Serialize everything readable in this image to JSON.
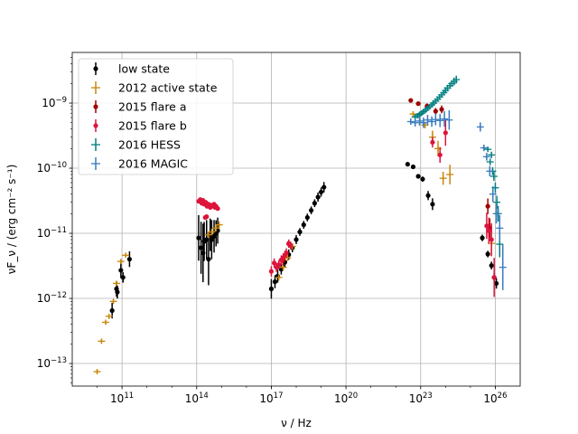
{
  "chart_data": {
    "type": "scatter",
    "xscale": "log",
    "yscale": "log",
    "xlabel": "ν / Hz",
    "ylabel": "νF_ν / (erg cm⁻² s⁻¹)",
    "xlim": [
      1000000000.0,
      1e+27
    ],
    "ylim": [
      4.5e-14,
      6e-09
    ],
    "grid": true,
    "legend_position": "top-left",
    "x_ticks": [
      {
        "value": 100000000000.0,
        "label": "10",
        "exp": "11"
      },
      {
        "value": 100000000000000.0,
        "label": "10",
        "exp": "14"
      },
      {
        "value": 1e+17,
        "label": "10",
        "exp": "17"
      },
      {
        "value": 1e+20,
        "label": "10",
        "exp": "20"
      },
      {
        "value": 1e+23,
        "label": "10",
        "exp": "23"
      },
      {
        "value": 1e+26,
        "label": "10",
        "exp": "26"
      }
    ],
    "y_ticks": [
      {
        "value": 1e-13,
        "label": "10",
        "exp": "−13"
      },
      {
        "value": 1e-12,
        "label": "10",
        "exp": "−12"
      },
      {
        "value": 1e-11,
        "label": "10",
        "exp": "−11"
      },
      {
        "value": 1e-10,
        "label": "10",
        "exp": "−10"
      },
      {
        "value": 1e-09,
        "label": "10",
        "exp": "−9"
      }
    ],
    "series": [
      {
        "name": "low state",
        "color": "#000000",
        "marker": "dot",
        "points": [
          [
            40000000000.0,
            6.5e-13,
            0.12
          ],
          [
            60000000000.0,
            1.4e-12,
            0.12
          ],
          [
            65000000000.0,
            1.25e-12,
            0.1
          ],
          [
            90000000000.0,
            2.7e-12,
            0.12
          ],
          [
            110000000000.0,
            2.1e-12,
            0.08
          ],
          [
            200000000000.0,
            4e-12,
            0.12
          ],
          [
            120000000000000.0,
            8.5e-12,
            0.35
          ],
          [
            150000000000000.0,
            6e-12,
            0.4
          ],
          [
            180000000000000.0,
            5e-12,
            0.45
          ],
          [
            200000000000000.0,
            7.5e-12,
            0.3
          ],
          [
            250000000000000.0,
            8e-12,
            0.3
          ],
          [
            300000000000000.0,
            4e-12,
            0.4
          ],
          [
            350000000000000.0,
            9.5e-12,
            0.25
          ],
          [
            400000000000000.0,
            8e-12,
            0.3
          ],
          [
            500000000000000.0,
            9e-12,
            0.25
          ],
          [
            600000000000000.0,
            1e-11,
            0.2
          ],
          [
            700000000000000.0,
            1.1e-11,
            0.2
          ],
          [
            1e+17,
            1.4e-12,
            0.15
          ],
          [
            1.4e+17,
            1.8e-12,
            0.1
          ],
          [
            1.8e+17,
            2.2e-12,
            0.1
          ],
          [
            2.5e+17,
            2.8e-12,
            0.08
          ],
          [
            3.5e+17,
            3.6e-12,
            0.08
          ],
          [
            5e+17,
            4.7e-12,
            0.08
          ],
          [
            7e+17,
            6e-12,
            0.07
          ],
          [
            1e+18,
            8e-12,
            0.07
          ],
          [
            1.4e+18,
            1.05e-11,
            0.06
          ],
          [
            2e+18,
            1.35e-11,
            0.06
          ],
          [
            2.8e+18,
            1.75e-11,
            0.06
          ],
          [
            4e+18,
            2.25e-11,
            0.06
          ],
          [
            5.5e+18,
            2.9e-11,
            0.06
          ],
          [
            7.5e+18,
            3.6e-11,
            0.07
          ],
          [
            1e+19,
            4.3e-11,
            0.07
          ],
          [
            1.3e+19,
            5.1e-11,
            0.08
          ],
          [
            3e+22,
            1.15e-10,
            0.03
          ],
          [
            5e+22,
            1.05e-10,
            0.03
          ],
          [
            8e+22,
            7.5e-11,
            0.03
          ],
          [
            1.2e+23,
            6.8e-11,
            0.04
          ],
          [
            2e+23,
            3.8e-11,
            0.07
          ],
          [
            3e+23,
            2.8e-11,
            0.09
          ],
          [
            3e+25,
            8.5e-12,
            0.05
          ],
          [
            5e+25,
            4.8e-12,
            0.05
          ],
          [
            7e+25,
            3.2e-12,
            0.06
          ],
          [
            9e+25,
            2.1e-12,
            0.07
          ],
          [
            1.1e+26,
            1.7e-12,
            0.08
          ]
        ]
      },
      {
        "name": "2012 active state",
        "color": "#c8860a",
        "marker": "plus",
        "points": [
          [
            10000000000.0,
            7.5e-14,
            0.03
          ],
          [
            15000000000.0,
            2.2e-13,
            0.03
          ],
          [
            22000000000.0,
            4.3e-13,
            0.03
          ],
          [
            30000000000.0,
            5.3e-13,
            0.03
          ],
          [
            45000000000.0,
            9e-13,
            0.03
          ],
          [
            60000000000.0,
            1.7e-12,
            0.03
          ],
          [
            90000000000.0,
            3.7e-12,
            0.03
          ],
          [
            140000000000.0,
            4.6e-12,
            0.03
          ],
          [
            300000000000000.0,
            9.5e-12,
            0.05
          ],
          [
            400000000000000.0,
            1.05e-11,
            0.05
          ],
          [
            600000000000000.0,
            1.2e-11,
            0.05
          ],
          [
            800000000000000.0,
            1.35e-11,
            0.05
          ],
          [
            2e+17,
            2.1e-12,
            0.05
          ],
          [
            3e+17,
            3e-12,
            0.05
          ],
          [
            4.5e+17,
            4.2e-12,
            0.05
          ],
          [
            7e+17,
            6.3e-12,
            0.05
          ],
          [
            5e+22,
            6.8e-10,
            0.04
          ],
          [
            1.5e+23,
            4.6e-10,
            0.05
          ],
          [
            3e+23,
            3e-10,
            0.1
          ],
          [
            5e+23,
            2e-10,
            0.12
          ],
          [
            8e+23,
            7e-11,
            0.1
          ],
          [
            1.5e+24,
            8e-11,
            0.15
          ],
          [
            7e+25,
            7e-12,
            0.2
          ]
        ]
      },
      {
        "name": "2015 flare a",
        "color": "#a00000",
        "marker": "dot",
        "points": [
          [
            4e+22,
            1.1e-09,
            0.03
          ],
          [
            8e+22,
            9.8e-10,
            0.03
          ],
          [
            1.8e+23,
            9e-10,
            0.04
          ],
          [
            4e+23,
            7.5e-10,
            0.05
          ],
          [
            7e+23,
            8e-10,
            0.06
          ],
          [
            5e+25,
            2.6e-11,
            0.12
          ],
          [
            6e+25,
            1.2e-11,
            0.15
          ],
          [
            3e+17,
            3.8e-12,
            0.08
          ],
          [
            5e+17,
            6.9e-12,
            0.06
          ]
        ]
      },
      {
        "name": "2015 flare b",
        "color": "#dc143c",
        "marker": "dot",
        "points": [
          [
            120000000000000.0,
            3.1e-11,
            0.02
          ],
          [
            140000000000000.0,
            3.3e-11,
            0.02
          ],
          [
            160000000000000.0,
            2.9e-11,
            0.02
          ],
          [
            180000000000000.0,
            3.2e-11,
            0.02
          ],
          [
            200000000000000.0,
            2.8e-11,
            0.02
          ],
          [
            230000000000000.0,
            3e-11,
            0.02
          ],
          [
            260000000000000.0,
            2.6e-11,
            0.02
          ],
          [
            300000000000000.0,
            2.8e-11,
            0.02
          ],
          [
            350000000000000.0,
            2.5e-11,
            0.02
          ],
          [
            400000000000000.0,
            2.7e-11,
            0.02
          ],
          [
            450000000000000.0,
            2.6e-11,
            0.02
          ],
          [
            500000000000000.0,
            2.8e-11,
            0.02
          ],
          [
            550000000000000.0,
            2.5e-11,
            0.02
          ],
          [
            600000000000000.0,
            2.6e-11,
            0.02
          ],
          [
            700000000000000.0,
            2.4e-11,
            0.02
          ],
          [
            220000000000000.0,
            1.75e-11,
            0.02
          ],
          [
            250000000000000.0,
            1.8e-11,
            0.02
          ],
          [
            1e+17,
            2.6e-12,
            0.08
          ],
          [
            1.3e+17,
            3.5e-12,
            0.07
          ],
          [
            1.6e+17,
            3e-12,
            0.07
          ],
          [
            2e+17,
            3.3e-12,
            0.07
          ],
          [
            2.5e+17,
            3.9e-12,
            0.07
          ],
          [
            3e+17,
            4.2e-12,
            0.07
          ],
          [
            3.5e+17,
            4.6e-12,
            0.07
          ],
          [
            4e+17,
            5e-12,
            0.07
          ],
          [
            5e+17,
            7e-12,
            0.06
          ],
          [
            6e+17,
            6.5e-12,
            0.06
          ],
          [
            3e+23,
            2.5e-10,
            0.08
          ],
          [
            6e+23,
            1.6e-10,
            0.12
          ],
          [
            1e+24,
            3.5e-10,
            0.2
          ],
          [
            4.5e+25,
            1.3e-11,
            0.2
          ],
          [
            5.5e+25,
            1.1e-11,
            0.2
          ],
          [
            7e+25,
            8e-12,
            0.25
          ],
          [
            9e+25,
            2.1e-12,
            0.3
          ]
        ]
      },
      {
        "name": "2016 HESS",
        "color": "#008080",
        "marker": "plus",
        "points": [
          [
            6e+22,
            6.1e-10,
            0.04
          ],
          [
            7.5e+22,
            6.4e-10,
            0.04
          ],
          [
            9e+22,
            6.7e-10,
            0.04
          ],
          [
            1.1e+23,
            7e-10,
            0.04
          ],
          [
            1.3e+23,
            7.4e-10,
            0.04
          ],
          [
            1.6e+23,
            7.8e-10,
            0.04
          ],
          [
            1.9e+23,
            8.3e-10,
            0.04
          ],
          [
            2.3e+23,
            8.8e-10,
            0.04
          ],
          [
            2.8e+23,
            9.4e-10,
            0.04
          ],
          [
            3.3e+23,
            1e-09,
            0.04
          ],
          [
            4e+23,
            1.07e-09,
            0.04
          ],
          [
            4.8e+23,
            1.15e-09,
            0.04
          ],
          [
            5.8e+23,
            1.24e-09,
            0.04
          ],
          [
            7e+23,
            1.34e-09,
            0.04
          ],
          [
            8.5e+23,
            1.45e-09,
            0.04
          ],
          [
            1e+24,
            1.57e-09,
            0.05
          ],
          [
            1.2e+24,
            1.7e-09,
            0.05
          ],
          [
            1.5e+24,
            1.85e-09,
            0.05
          ],
          [
            1.8e+24,
            2e-09,
            0.05
          ],
          [
            2.2e+24,
            2.15e-09,
            0.06
          ],
          [
            2.7e+24,
            2.3e-09,
            0.06
          ],
          [
            5e+25,
            1.95e-10,
            0.04
          ],
          [
            6.2e+25,
            1.25e-10,
            0.05
          ],
          [
            7e+25,
            1.6e-10,
            0.05
          ],
          [
            7.8e+25,
            9e-11,
            0.06
          ],
          [
            8.8e+25,
            7.5e-11,
            0.07
          ],
          [
            1e+26,
            5e-11,
            0.08
          ],
          [
            1.15e+26,
            3e-11,
            0.1
          ],
          [
            1.3e+26,
            2e-11,
            0.12
          ],
          [
            1.5e+26,
            6.8e-12,
            0.2
          ]
        ]
      },
      {
        "name": "2016 MAGIC",
        "color": "#3a7bbf",
        "marker": "plus",
        "points": [
          [
            4e+22,
            5.2e-10,
            0.05
          ],
          [
            6e+22,
            5e-10,
            0.06
          ],
          [
            9e+22,
            5.3e-10,
            0.07
          ],
          [
            1.3e+23,
            5e-10,
            0.08
          ],
          [
            1.9e+23,
            5.5e-10,
            0.08
          ],
          [
            2.8e+23,
            5.2e-10,
            0.08
          ],
          [
            4e+23,
            5.6e-10,
            0.09
          ],
          [
            6e+23,
            5.4e-10,
            0.1
          ],
          [
            9e+23,
            5.7e-10,
            0.12
          ],
          [
            1.4e+24,
            5.5e-10,
            0.15
          ],
          [
            2.5e+25,
            4.3e-10,
            0.07
          ],
          [
            3.5e+25,
            2.05e-10,
            0.05
          ],
          [
            4.5e+25,
            1.5e-10,
            0.06
          ],
          [
            6e+25,
            9e-11,
            0.08
          ],
          [
            8e+25,
            4e-11,
            0.12
          ],
          [
            1.1e+26,
            2e-11,
            0.15
          ],
          [
            1.5e+26,
            1.2e-11,
            0.2
          ],
          [
            2e+26,
            3e-12,
            0.35
          ]
        ]
      }
    ]
  }
}
